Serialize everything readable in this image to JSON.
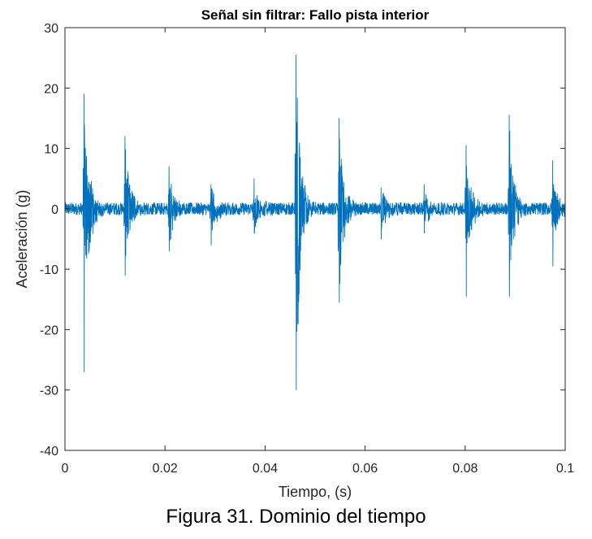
{
  "chart_data": {
    "type": "line",
    "title": "Señal sin filtrar: Fallo pista interior",
    "xlabel": "Tiempo, (s)",
    "ylabel": "Aceleración (g)",
    "xlim": [
      0,
      0.1
    ],
    "ylim": [
      -40,
      30
    ],
    "xticks": [
      0,
      0.02,
      0.04,
      0.06,
      0.08,
      0.1
    ],
    "xtick_labels": [
      "0",
      "0.02",
      "0.04",
      "0.06",
      "0.08",
      "0.1"
    ],
    "yticks": [
      30,
      20,
      10,
      0,
      -10,
      -20,
      -30,
      -40
    ],
    "ytick_labels": [
      "30",
      "20",
      "10",
      "0",
      "-10",
      "-20",
      "-30",
      "-40"
    ],
    "grid": false,
    "line_color": "#0072BD",
    "noise_amplitude": 1.0,
    "impulses": [
      {
        "t": 0.0038,
        "max": 19,
        "min": -27
      },
      {
        "t": 0.012,
        "max": 12,
        "min": -11
      },
      {
        "t": 0.0208,
        "max": 7,
        "min": -7
      },
      {
        "t": 0.0292,
        "max": 4,
        "min": -6
      },
      {
        "t": 0.0378,
        "max": 5,
        "min": -4
      },
      {
        "t": 0.0462,
        "max": 25.5,
        "min": -30
      },
      {
        "t": 0.0548,
        "max": 15,
        "min": -15.5
      },
      {
        "t": 0.0632,
        "max": 3.5,
        "min": -5
      },
      {
        "t": 0.0718,
        "max": 4,
        "min": -4
      },
      {
        "t": 0.0802,
        "max": 10.5,
        "min": -14.5
      },
      {
        "t": 0.0888,
        "max": 15.5,
        "min": -14.5
      },
      {
        "t": 0.0975,
        "max": 8,
        "min": -9.5
      }
    ]
  },
  "caption": "Figura 31. Dominio del tiempo"
}
